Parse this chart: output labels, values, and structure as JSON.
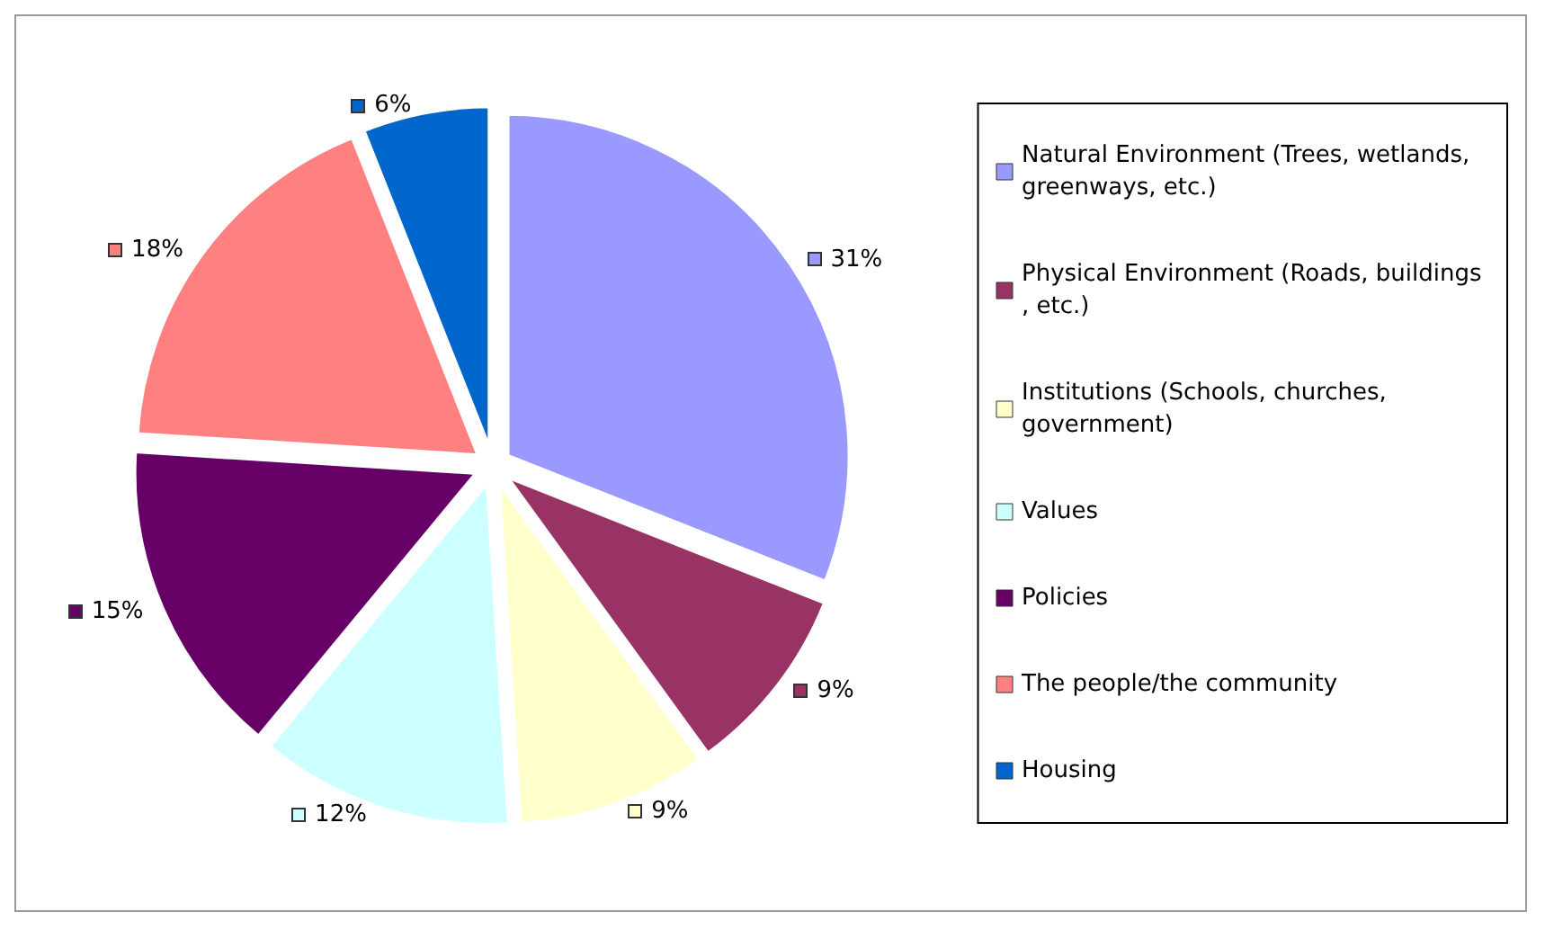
{
  "chart_data": {
    "type": "pie",
    "categories": [
      "Natural Environment (Trees, wetlands, greenways, etc.)",
      "Physical Environment (Roads, buildings, etc.)",
      "Institutions (Schools, churches, government)",
      "Values",
      "Policies",
      "The people/the community",
      "Housing"
    ],
    "values": [
      31,
      9,
      9,
      12,
      15,
      18,
      6
    ],
    "colors": [
      "#9999ff",
      "#993366",
      "#ffffcc",
      "#ccffff",
      "#660066",
      "#ff8080",
      "#0066cc"
    ],
    "value_labels": [
      "31%",
      "9%",
      "9%",
      "12%",
      "15%",
      "18%",
      "6%"
    ],
    "legend": "right"
  }
}
